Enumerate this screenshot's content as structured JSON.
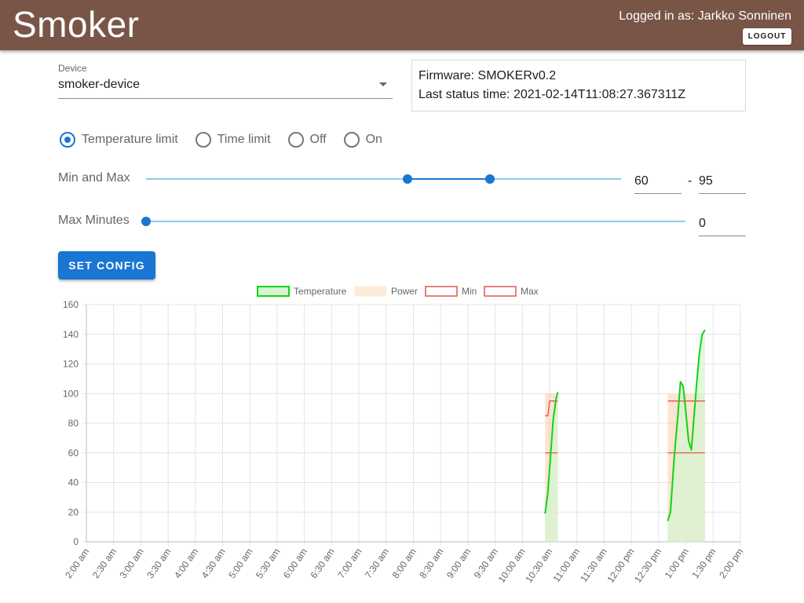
{
  "header": {
    "title": "Smoker",
    "logged_in": "Logged in as: Jarkko Sonninen",
    "logout_label": "LOGOUT",
    "background": "#795548"
  },
  "device": {
    "label": "Device",
    "value": "smoker-device",
    "icon": "chevron-down-icon"
  },
  "status": {
    "firmware": "Firmware: SMOKERv0.2",
    "last_status": "Last status time: 2021-02-14T11:08:27.367311Z"
  },
  "mode": {
    "options": [
      "Temperature limit",
      "Time limit",
      "Off",
      "On"
    ],
    "selected": "Temperature limit"
  },
  "min_max": {
    "label": "Min and Max",
    "min_value": "60",
    "max_value": "95",
    "separator": "-",
    "range_min": 0,
    "range_max": 160
  },
  "max_minutes": {
    "label": "Max Minutes",
    "value": "0"
  },
  "set_config_label": "SET CONFIG",
  "chart_data": {
    "type": "line",
    "legend": [
      "Temperature",
      "Power",
      "Min",
      "Max"
    ],
    "legend_position": "top",
    "grid": true,
    "ylim": [
      0,
      160
    ],
    "yticks": [
      "0",
      "20",
      "40",
      "60",
      "80",
      "100",
      "120",
      "140",
      "160"
    ],
    "xticks": [
      "2:00 am",
      "2:30 am",
      "3:00 am",
      "3:30 am",
      "4:00 am",
      "4:30 am",
      "5:00 am",
      "5:30 am",
      "6:00 am",
      "6:30 am",
      "7:00 am",
      "7:30 am",
      "8:00 am",
      "8:30 am",
      "9:00 am",
      "9:30 am",
      "10:00 am",
      "10:30 am",
      "11:00 am",
      "11:30 am",
      "12:00 pm",
      "12:30 pm",
      "1:00 pm",
      "1:30 pm",
      "2:00 pm"
    ],
    "colors": {
      "Temperature": "#11d411",
      "Power": "#f8c49a",
      "Min": "#e0584c",
      "Max": "#e0584c",
      "temperature_fill": "#d6f5d0"
    },
    "series": [
      {
        "name": "Temperature",
        "segments": [
          [
            [
              "10:25",
              19
            ],
            [
              "10:28",
              33
            ],
            [
              "10:31",
              58
            ],
            [
              "10:34",
              83
            ],
            [
              "10:37",
              96
            ],
            [
              "10:39",
              101
            ]
          ],
          [
            [
              "12:40",
              14
            ],
            [
              "12:43",
              20
            ],
            [
              "12:47",
              56
            ],
            [
              "12:51",
              84
            ],
            [
              "12:54",
              108
            ],
            [
              "12:57",
              105
            ],
            [
              "13:00",
              87
            ],
            [
              "13:03",
              68
            ],
            [
              "13:06",
              62
            ],
            [
              "13:09",
              85
            ],
            [
              "13:12",
              108
            ],
            [
              "13:15",
              128
            ],
            [
              "13:18",
              140
            ],
            [
              "13:21",
              143
            ]
          ]
        ]
      },
      {
        "name": "Power",
        "on_intervals": [
          [
            "10:25",
            "10:39"
          ],
          [
            "12:40",
            "13:21"
          ]
        ],
        "level": 100
      },
      {
        "name": "Min",
        "segments": [
          [
            [
              "10:25",
              60
            ],
            [
              "10:39",
              60
            ]
          ],
          [
            [
              "12:40",
              60
            ],
            [
              "13:21",
              60
            ]
          ]
        ]
      },
      {
        "name": "Max",
        "segments": [
          [
            [
              "10:25",
              85
            ],
            [
              "10:28",
              85
            ],
            [
              "10:30",
              95
            ],
            [
              "10:39",
              95
            ]
          ],
          [
            [
              "12:40",
              95
            ],
            [
              "13:21",
              95
            ]
          ]
        ]
      }
    ]
  }
}
